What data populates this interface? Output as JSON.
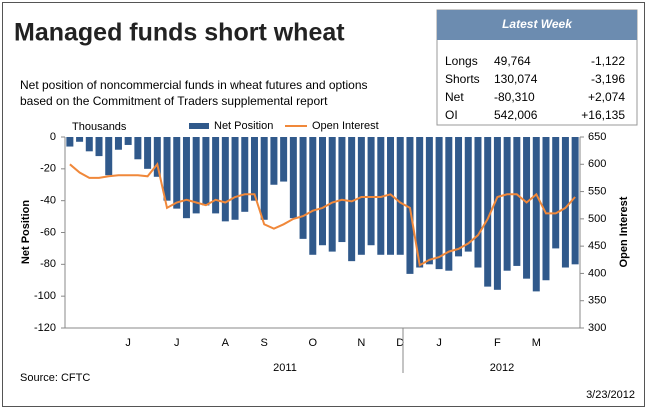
{
  "chart_data": {
    "type": "bar_line",
    "title": "Managed funds short wheat",
    "subtitle": [
      "Net position of noncommercial funds in wheat futures and options",
      "based on the Commitment of Traders supplemental report"
    ],
    "units_label": "Thousands",
    "ylabel": "Net Position",
    "y2label": "Open Interest",
    "source": "Source: CFTC",
    "date": "3/23/2012",
    "year_labels": [
      "2011",
      "2012"
    ],
    "categories": [
      null,
      null,
      null,
      null,
      null,
      null,
      "J",
      null,
      null,
      null,
      null,
      "J",
      null,
      null,
      null,
      null,
      "A",
      null,
      null,
      null,
      "S",
      null,
      null,
      null,
      null,
      "O",
      null,
      null,
      null,
      null,
      "N",
      null,
      null,
      null,
      "D",
      null,
      null,
      null,
      "J",
      null,
      null,
      null,
      null,
      null,
      "F",
      null,
      null,
      null,
      "M",
      null,
      null,
      null,
      null
    ],
    "series": [
      {
        "name": "Net Position",
        "color": "#30598b",
        "values": [
          -6,
          -3,
          -9,
          -12,
          -24,
          -8,
          -5,
          -14,
          -20,
          -25,
          -40,
          -45,
          -51,
          -48,
          -43,
          -48,
          -53,
          -52,
          -47,
          -40,
          -52,
          -30,
          -28,
          -51,
          -64,
          -74,
          -68,
          -72,
          -66,
          -78,
          -74,
          -68,
          -74,
          -74,
          -74,
          -86,
          -82,
          -80,
          -83,
          -84,
          -75,
          -72,
          -82,
          -94,
          -96,
          -84,
          -81,
          -89,
          -97,
          -90,
          -70,
          -82,
          -80
        ]
      },
      {
        "name": "Open Interest",
        "color": "#f0883a",
        "axis": "y2",
        "values": [
          600,
          585,
          575,
          575,
          578,
          580,
          580,
          580,
          578,
          600,
          520,
          530,
          535,
          530,
          525,
          535,
          530,
          540,
          545,
          545,
          490,
          482,
          490,
          500,
          505,
          515,
          520,
          530,
          535,
          532,
          540,
          540,
          540,
          545,
          530,
          520,
          415,
          425,
          430,
          440,
          445,
          455,
          470,
          500,
          540,
          545,
          545,
          530,
          545,
          510,
          510,
          520,
          540
        ]
      }
    ],
    "ylim": [
      -120,
      0
    ],
    "yticks": [
      0,
      -20,
      -40,
      -60,
      -80,
      -100,
      -120
    ],
    "y2lim": [
      300,
      650
    ],
    "y2ticks": [
      650,
      600,
      550,
      500,
      450,
      400,
      350,
      300
    ],
    "grid": false
  },
  "panel": {
    "title": "Latest Week",
    "rows": [
      [
        "Longs",
        "49,764",
        "-1,122"
      ],
      [
        "Shorts",
        "130,074",
        "-3,196"
      ],
      [
        "Net",
        "-80,310",
        "+2,074"
      ],
      [
        "OI",
        "542,006",
        "+16,135"
      ]
    ]
  }
}
